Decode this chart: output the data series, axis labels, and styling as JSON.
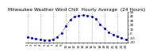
{
  "title": "Milwaukee Weather Wind Chill  Hourly Average  (24 Hours)",
  "hours": [
    1,
    2,
    3,
    4,
    5,
    6,
    7,
    8,
    9,
    10,
    11,
    12,
    13,
    14,
    15,
    16,
    17,
    18,
    19,
    20,
    21,
    22,
    23,
    24
  ],
  "wind_chill": [
    -8,
    -10,
    -12,
    -14,
    -15,
    -15,
    -13,
    -7,
    2,
    18,
    32,
    40,
    42,
    43,
    42,
    40,
    35,
    22,
    12,
    4,
    -2,
    -6,
    -10,
    -14
  ],
  "line_color": "#0000cc",
  "bg_color": "#ffffff",
  "grid_color": "#888888",
  "ylim": [
    -20,
    50
  ],
  "ytick_values": [
    -20,
    -10,
    0,
    10,
    20,
    30,
    40,
    50
  ],
  "ytick_labels": [
    "-20",
    "-10",
    "0",
    "10",
    "20",
    "30",
    "40",
    "50"
  ],
  "title_fontsize": 4.2,
  "tick_fontsize": 3.0,
  "vgrid_positions": [
    1,
    4,
    7,
    10,
    13,
    16,
    19,
    22,
    25
  ]
}
